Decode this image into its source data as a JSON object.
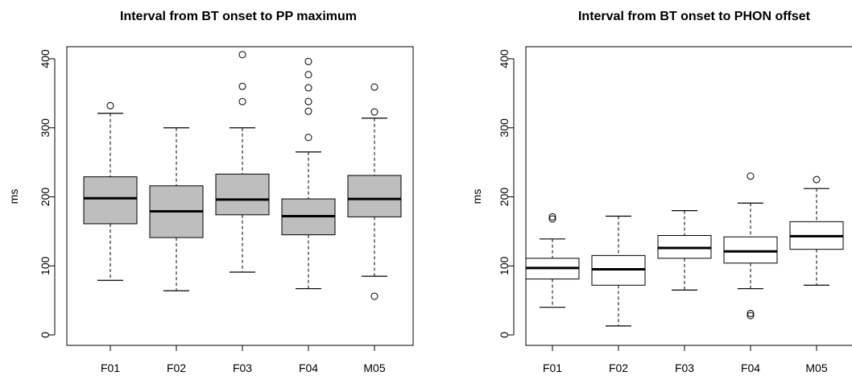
{
  "chart_data": [
    {
      "type": "box",
      "title": "Interval from BT onset to PP maximum",
      "xlabel": "",
      "ylabel": "ms",
      "ylim": [
        0,
        400
      ],
      "yticks": [
        "0",
        "100",
        "200",
        "300",
        "400"
      ],
      "grid": false,
      "box_color": "#bebebe",
      "categories": [
        "F01",
        "F02",
        "F03",
        "F04",
        "M05"
      ],
      "boxes": [
        {
          "whisker_low": 79,
          "q1": 161,
          "median": 198,
          "q3": 229,
          "whisker_high": 321,
          "outliers": [
            332
          ]
        },
        {
          "whisker_low": 64,
          "q1": 141,
          "median": 179,
          "q3": 216,
          "whisker_high": 300,
          "outliers": []
        },
        {
          "whisker_low": 91,
          "q1": 174,
          "median": 196,
          "q3": 233,
          "whisker_high": 300,
          "outliers": [
            338,
            360,
            406
          ]
        },
        {
          "whisker_low": 67,
          "q1": 145,
          "median": 172,
          "q3": 197,
          "whisker_high": 265,
          "outliers": [
            286,
            324,
            338,
            358,
            377,
            396
          ]
        },
        {
          "whisker_low": 85,
          "q1": 171,
          "median": 197,
          "q3": 231,
          "whisker_high": 314,
          "outliers": [
            56,
            323,
            359
          ]
        }
      ]
    },
    {
      "type": "box",
      "title": "Interval from BT onset to PHON offset",
      "xlabel": "",
      "ylabel": "ms",
      "ylim": [
        0,
        400
      ],
      "yticks": [
        "0",
        "100",
        "200",
        "300",
        "400"
      ],
      "grid": false,
      "box_color": "#ffffff",
      "categories": [
        "F01",
        "F02",
        "F03",
        "F04",
        "M05"
      ],
      "boxes": [
        {
          "whisker_low": 40,
          "q1": 81,
          "median": 97,
          "q3": 111,
          "whisker_high": 139,
          "outliers": [
            168,
            171
          ]
        },
        {
          "whisker_low": 13,
          "q1": 72,
          "median": 95,
          "q3": 115,
          "whisker_high": 172,
          "outliers": []
        },
        {
          "whisker_low": 65,
          "q1": 111,
          "median": 126,
          "q3": 144,
          "whisker_high": 180,
          "outliers": []
        },
        {
          "whisker_low": 67,
          "q1": 104,
          "median": 121,
          "q3": 142,
          "whisker_high": 191,
          "outliers": [
            28,
            31,
            230
          ]
        },
        {
          "whisker_low": 72,
          "q1": 124,
          "median": 143,
          "q3": 164,
          "whisker_high": 212,
          "outliers": [
            225
          ]
        }
      ]
    }
  ]
}
